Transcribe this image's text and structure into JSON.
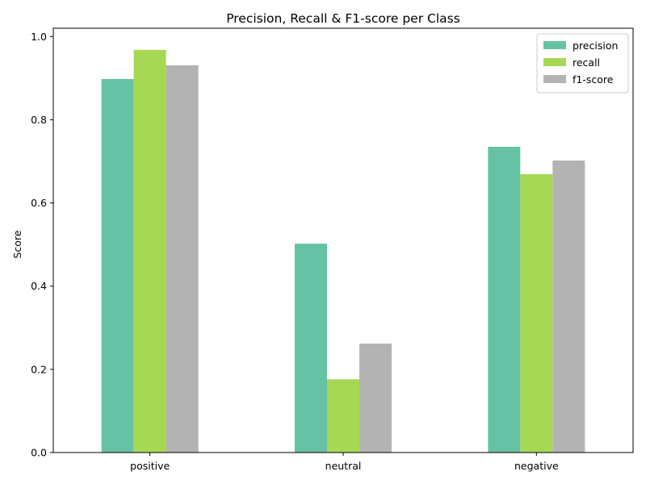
{
  "chart_data": {
    "type": "bar",
    "title": "Precision, Recall & F1-score per Class",
    "xlabel": "",
    "ylabel": "Score",
    "categories": [
      "positive",
      "neutral",
      "negative"
    ],
    "series": [
      {
        "name": "precision",
        "color": "#66c2a5",
        "values": [
          0.898,
          0.502,
          0.735
        ]
      },
      {
        "name": "recall",
        "color": "#a6d854",
        "values": [
          0.968,
          0.176,
          0.669
        ]
      },
      {
        "name": "f1-score",
        "color": "#b3b3b3",
        "values": [
          0.931,
          0.262,
          0.702
        ]
      }
    ],
    "ylim": [
      0,
      1.02
    ],
    "yticks": [
      0.0,
      0.2,
      0.4,
      0.6,
      0.8,
      1.0
    ],
    "ytick_labels": [
      "0.0",
      "0.2",
      "0.4",
      "0.6",
      "0.8",
      "1.0"
    ],
    "grid": false,
    "legend_position": "top-right"
  }
}
